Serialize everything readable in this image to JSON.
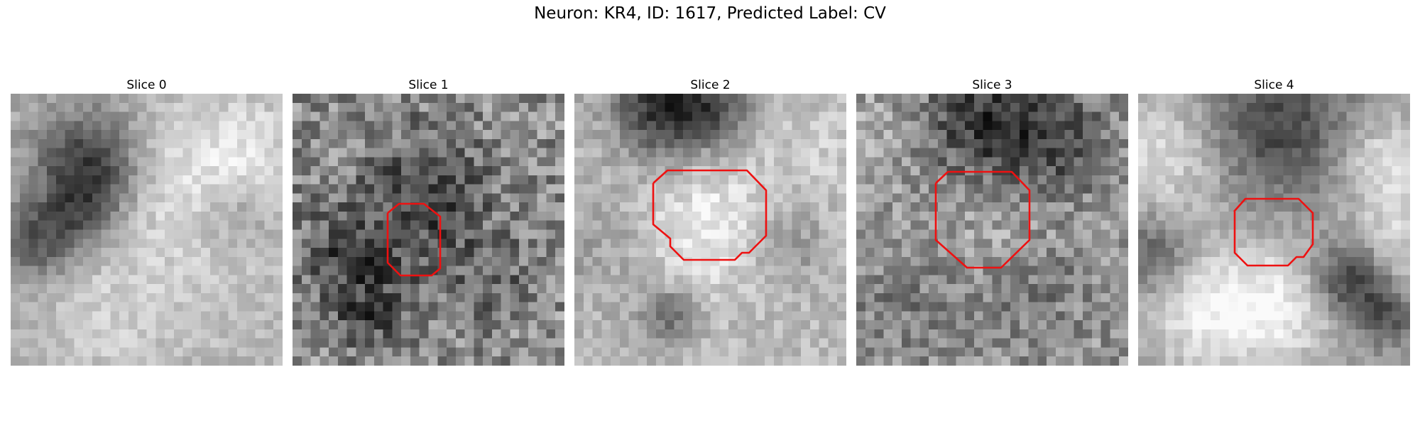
{
  "figure": {
    "title": "Neuron: KR4, ID: 1617, Predicted Label: CV",
    "contour_color": "#ee1111"
  },
  "panels": [
    {
      "title": "Slice 0"
    },
    {
      "title": "Slice 1"
    },
    {
      "title": "Slice 2"
    },
    {
      "title": "Slice 3"
    },
    {
      "title": "Slice 4"
    }
  ]
}
